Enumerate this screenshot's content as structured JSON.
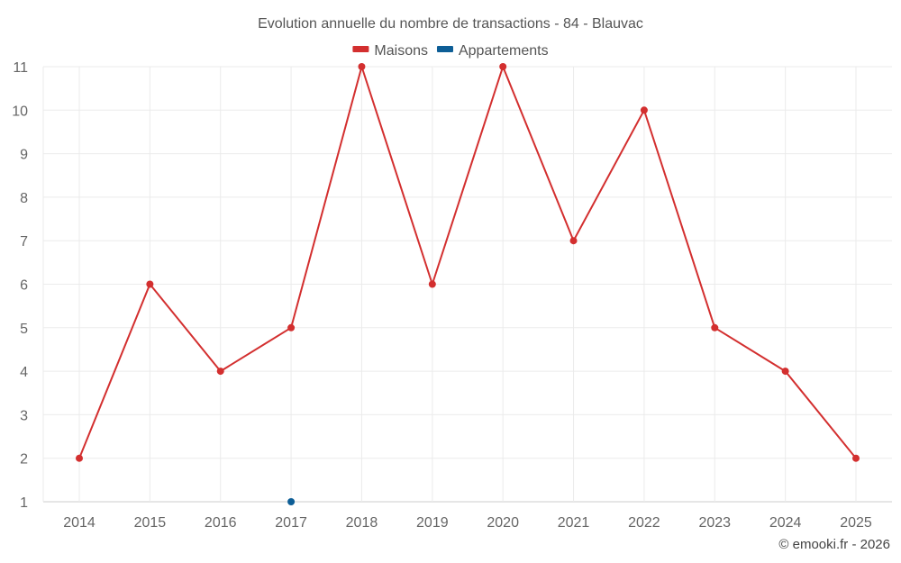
{
  "chart_data": {
    "type": "line",
    "title": "Evolution annuelle du nombre de transactions - 84 - Blauvac",
    "x": [
      "2014",
      "2015",
      "2016",
      "2017",
      "2018",
      "2019",
      "2020",
      "2021",
      "2022",
      "2023",
      "2024",
      "2025"
    ],
    "series": [
      {
        "name": "Maisons",
        "color": "#d32f2f",
        "values": [
          2,
          6,
          4,
          5,
          11,
          6,
          11,
          7,
          10,
          5,
          4,
          2
        ]
      },
      {
        "name": "Appartements",
        "color": "#0d5e96",
        "values": [
          null,
          null,
          null,
          1,
          null,
          null,
          null,
          null,
          null,
          null,
          null,
          null
        ]
      }
    ],
    "ylim": [
      1,
      11
    ],
    "yticks": [
      1,
      2,
      3,
      4,
      5,
      6,
      7,
      8,
      9,
      10,
      11
    ],
    "grid": true,
    "legend_position": "top-center"
  },
  "credit": "© emooki.fr - 2026"
}
